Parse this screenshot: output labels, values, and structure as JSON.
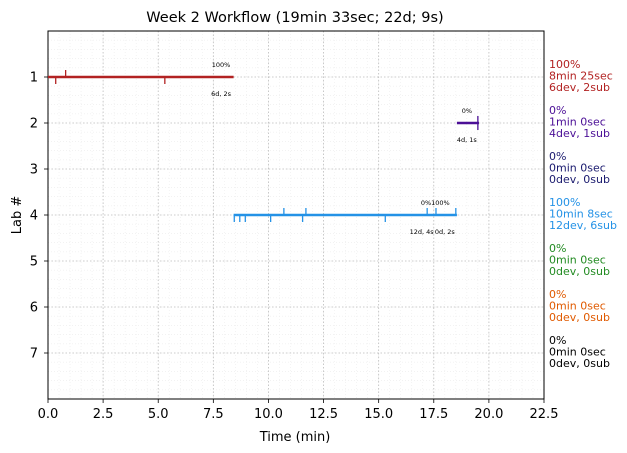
{
  "chart_data": {
    "type": "timeline",
    "title": "Week 2 Workflow (19min 33sec; 22d; 9s)",
    "xlabel": "Time (min)",
    "ylabel": "Lab #",
    "xlim": [
      0,
      22.5
    ],
    "ylim": [
      8,
      0
    ],
    "x_ticks": [
      "0.0",
      "2.5",
      "5.0",
      "7.5",
      "10.0",
      "12.5",
      "15.0",
      "17.5",
      "20.0",
      "22.5"
    ],
    "y_ticks": [
      "1",
      "2",
      "3",
      "4",
      "5",
      "6",
      "7"
    ],
    "grid": true,
    "labs": [
      {
        "lab": 1,
        "color": "#b22222",
        "summary": [
          "100%",
          "8min 25sec",
          "6dev, 2sub"
        ],
        "segment": [
          0,
          8.42
        ],
        "ticks_up": [
          0.8
        ],
        "ticks_down": [
          0.35,
          5.3
        ],
        "annotations": [
          {
            "text": "100%",
            "x": 7.85,
            "position": "above"
          },
          {
            "text": "6d, 2s",
            "x": 7.85,
            "position": "below"
          }
        ]
      },
      {
        "lab": 2,
        "color": "#4b0f96",
        "summary": [
          "0%",
          "1min 0sec",
          "4dev, 1sub"
        ],
        "segment": [
          18.55,
          19.55
        ],
        "ticks_up": [
          19.5
        ],
        "ticks_down": [
          19.5
        ],
        "annotations": [
          {
            "text": "0%",
            "x": 19.0,
            "position": "above"
          },
          {
            "text": "4d, 1s",
            "x": 19.0,
            "position": "below"
          }
        ]
      },
      {
        "lab": 3,
        "color": "#1a1a6e",
        "summary": [
          "0%",
          "0min 0sec",
          "0dev, 0sub"
        ]
      },
      {
        "lab": 4,
        "color": "#2492e6",
        "summary": [
          "100%",
          "10min 8sec",
          "12dev, 6sub"
        ],
        "segment": [
          8.42,
          18.55
        ],
        "ticks_up": [
          10.7,
          11.7,
          17.2,
          17.6,
          18.5
        ],
        "ticks_down": [
          8.45,
          8.7,
          8.95,
          10.1,
          11.55,
          15.3
        ],
        "annotations": [
          {
            "text": "0%",
            "x": 17.15,
            "position": "above"
          },
          {
            "text": "100%",
            "x": 17.8,
            "position": "above"
          },
          {
            "text": "12d, 4s",
            "x": 16.95,
            "position": "below"
          },
          {
            "text": "0d, 2s",
            "x": 18.0,
            "position": "below"
          }
        ]
      },
      {
        "lab": 5,
        "color": "#228b22",
        "summary": [
          "0%",
          "0min 0sec",
          "0dev, 0sub"
        ]
      },
      {
        "lab": 6,
        "color": "#e05a00",
        "summary": [
          "0%",
          "0min 0sec",
          "0dev, 0sub"
        ]
      },
      {
        "lab": 7,
        "color": "#000000",
        "summary": [
          "0%",
          "0min 0sec",
          "0dev, 0sub"
        ]
      }
    ]
  }
}
